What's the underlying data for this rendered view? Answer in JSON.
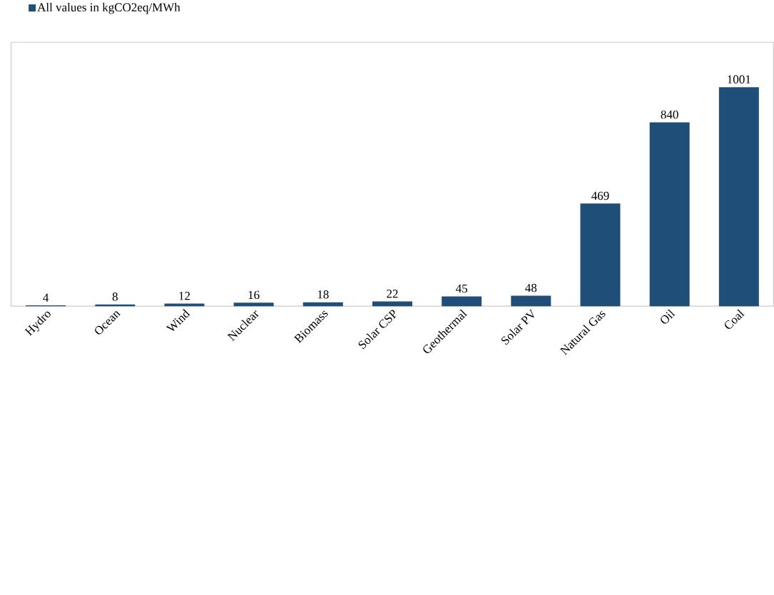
{
  "chart_data": {
    "type": "bar",
    "categories": [
      "Hydro",
      "Ocean",
      "Wind",
      "Nuclear",
      "Biomass",
      "Solar CSP",
      "Geothermal",
      "Solar PV",
      "Natural Gas",
      "Oil",
      "Coal"
    ],
    "series": [
      {
        "name": "All values in kgCO2eq/MWh",
        "color": "#1f4e79",
        "values": [
          4,
          8,
          12,
          16,
          18,
          22,
          45,
          48,
          469,
          840,
          1001
        ]
      }
    ],
    "data_labels": true,
    "legend": "top left",
    "grid": false
  }
}
